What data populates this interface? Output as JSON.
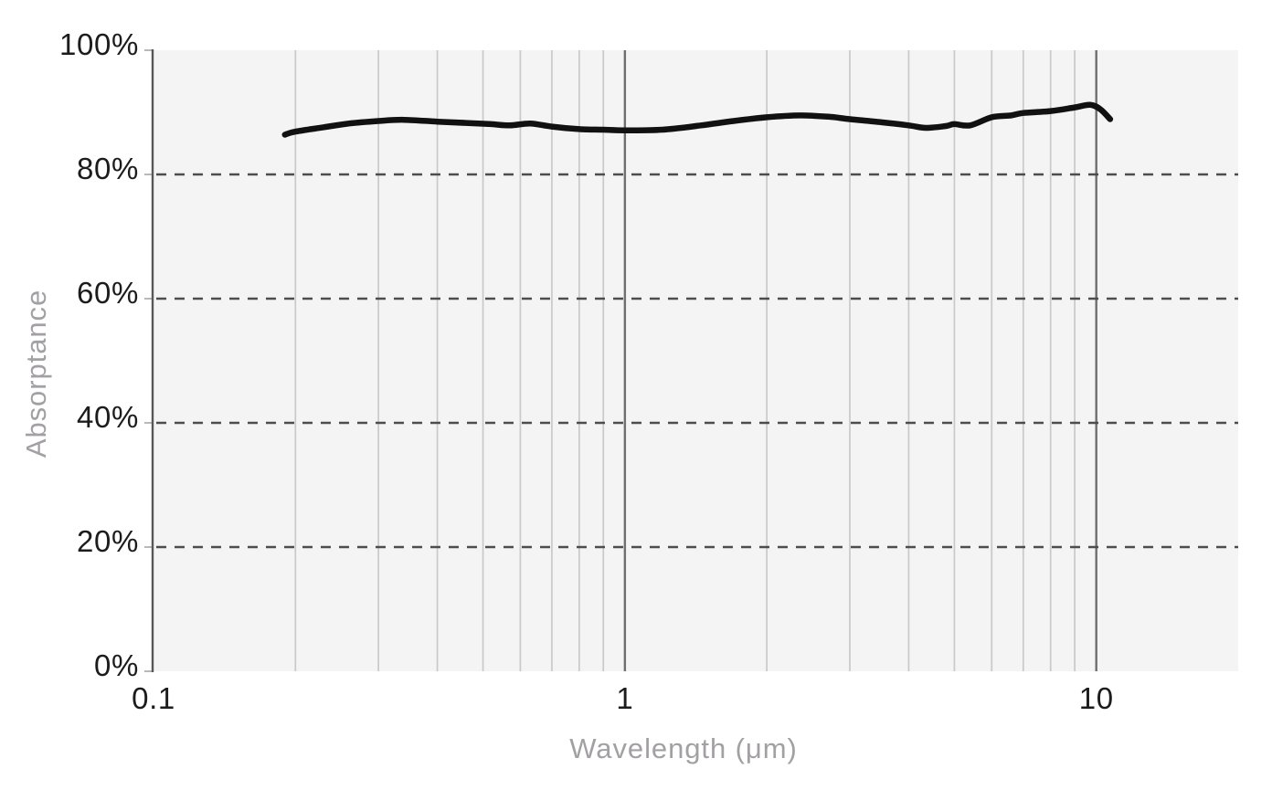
{
  "chart_data": {
    "type": "line",
    "title": "",
    "xlabel": "Wavelength (μm)",
    "ylabel": "Absorptance",
    "x_scale": "log",
    "x_range": [
      0.1,
      20
    ],
    "y_range": [
      0,
      100
    ],
    "grid": "on",
    "legend": "none",
    "x_ticks": [
      {
        "value": 0.1,
        "label": "0.1"
      },
      {
        "value": 1,
        "label": "1"
      },
      {
        "value": 10,
        "label": "10"
      }
    ],
    "x_minor_gridlines": [
      0.2,
      0.3,
      0.4,
      0.5,
      0.6,
      0.7,
      0.8,
      0.9,
      2,
      3,
      4,
      5,
      6,
      7,
      8,
      9
    ],
    "x_major_gridlines": [
      1,
      10
    ],
    "y_ticks": [
      {
        "value": 0,
        "label": "0%"
      },
      {
        "value": 20,
        "label": "20%"
      },
      {
        "value": 40,
        "label": "40%"
      },
      {
        "value": 60,
        "label": "60%"
      },
      {
        "value": 80,
        "label": "80%"
      },
      {
        "value": 100,
        "label": "100%"
      }
    ],
    "y_gridlines_dashed": [
      20,
      40,
      60,
      80
    ],
    "series": [
      {
        "name": "Absorptance",
        "unit": "%",
        "points": [
          [
            0.19,
            86.4
          ],
          [
            0.2,
            86.9
          ],
          [
            0.23,
            87.6
          ],
          [
            0.26,
            88.2
          ],
          [
            0.3,
            88.6
          ],
          [
            0.34,
            88.8
          ],
          [
            0.4,
            88.5
          ],
          [
            0.46,
            88.3
          ],
          [
            0.52,
            88.1
          ],
          [
            0.57,
            87.9
          ],
          [
            0.63,
            88.2
          ],
          [
            0.7,
            87.7
          ],
          [
            0.8,
            87.3
          ],
          [
            0.9,
            87.2
          ],
          [
            1.0,
            87.1
          ],
          [
            1.2,
            87.2
          ],
          [
            1.45,
            87.9
          ],
          [
            1.7,
            88.6
          ],
          [
            2.0,
            89.2
          ],
          [
            2.35,
            89.5
          ],
          [
            2.7,
            89.3
          ],
          [
            3.0,
            88.9
          ],
          [
            3.5,
            88.4
          ],
          [
            4.0,
            87.9
          ],
          [
            4.35,
            87.5
          ],
          [
            4.8,
            87.8
          ],
          [
            5.0,
            88.1
          ],
          [
            5.4,
            87.9
          ],
          [
            6.0,
            89.2
          ],
          [
            6.6,
            89.5
          ],
          [
            7.0,
            89.9
          ],
          [
            8.0,
            90.2
          ],
          [
            9.0,
            90.8
          ],
          [
            9.7,
            91.2
          ],
          [
            10.2,
            90.5
          ],
          [
            10.7,
            88.9
          ]
        ]
      }
    ]
  },
  "colors": {
    "background": "#ffffff",
    "plot_background": "#f4f4f4",
    "minor_gridline": "#c9c9c9",
    "major_gridline": "#6f6f6f",
    "dashed_gridline": "#4d4d4d",
    "axis_line": "#57575b",
    "axis_tick": "#b8b8b8",
    "tick_label": "#1c1c1c",
    "axis_title": "#a2a0a3",
    "series_line": "#111111"
  }
}
